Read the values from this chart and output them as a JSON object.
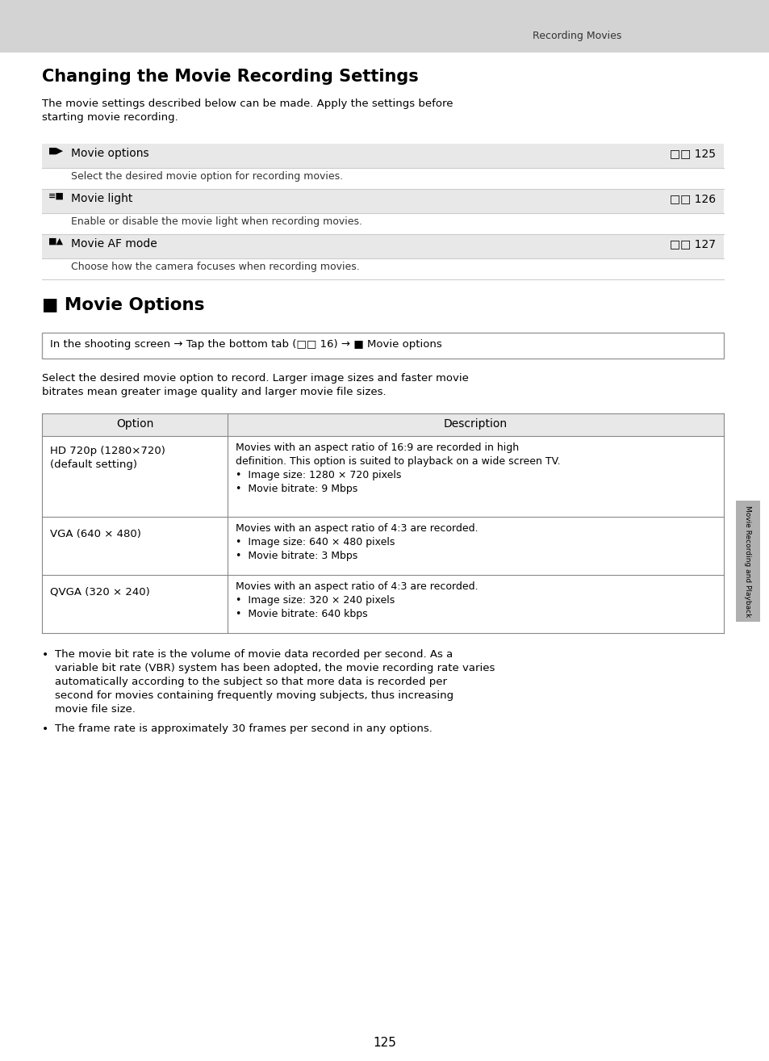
{
  "page_bg": "#ffffff",
  "header_bg": "#d3d3d3",
  "header_text": "Recording Movies",
  "main_title": "Changing the Movie Recording Settings",
  "intro_text": "The movie settings described below can be made. Apply the settings before\nstarting movie recording.",
  "section2_title": "■ Movie Options",
  "nav_box_text": "In the shooting screen → Tap the bottom tab (□□ 16) → ■ Movie options",
  "section2_intro": "Select the desired movie option to record. Larger image sizes and faster movie\nbitrates mean greater image quality and larger movie file sizes.",
  "table_header_bg": "#e0e0e0",
  "table_row1_bg": "#ffffff",
  "table_header": [
    "Option",
    "Description"
  ],
  "row1_option": "HD 720p (1280×720)\n(default setting)",
  "row1_desc": "Movies with an aspect ratio of 16:9 are recorded in high\ndefinition. This option is suited to playback on a wide screen TV.\n•  Image size: 1280 × 720 pixels\n•  Movie bitrate: 9 Mbps",
  "row2_option": "VGA (640 × 480)",
  "row2_desc": "Movies with an aspect ratio of 4:3 are recorded.\n•  Image size: 640 × 480 pixels\n•  Movie bitrate: 3 Mbps",
  "row3_option": "QVGA (320 × 240)",
  "row3_desc": "Movies with an aspect ratio of 4:3 are recorded.\n•  Image size: 320 × 240 pixels\n•  Movie bitrate: 640 kbps",
  "bullet1": "The movie bit rate is the volume of movie data recorded per second. As a\nvariable bit rate (VBR) system has been adopted, the movie recording rate varies\nautomatically according to the subject so that more data is recorded per\nsecond for movies containing frequently moving subjects, thus increasing\nmovie file size.",
  "bullet2": "The frame rate is approximately 30 frames per second in any options.",
  "settings_label1": "Movie options",
  "settings_page1": "□□ 125",
  "settings_desc1": "Select the desired movie option for recording movies.",
  "settings_label2": "Movie light",
  "settings_page2": "□□ 126",
  "settings_desc2": "Enable or disable the movie light when recording movies.",
  "settings_label3": "Movie AF mode",
  "settings_page3": "□□ 127",
  "settings_desc3": "Choose how the camera focuses when recording movies.",
  "side_tab_text": "Movie Recording and Playback",
  "page_number": "125",
  "light_gray_bg": "#e8e8e8",
  "border_color": "#aaaaaa",
  "text_color": "#000000",
  "desc_text_color": "#222222"
}
